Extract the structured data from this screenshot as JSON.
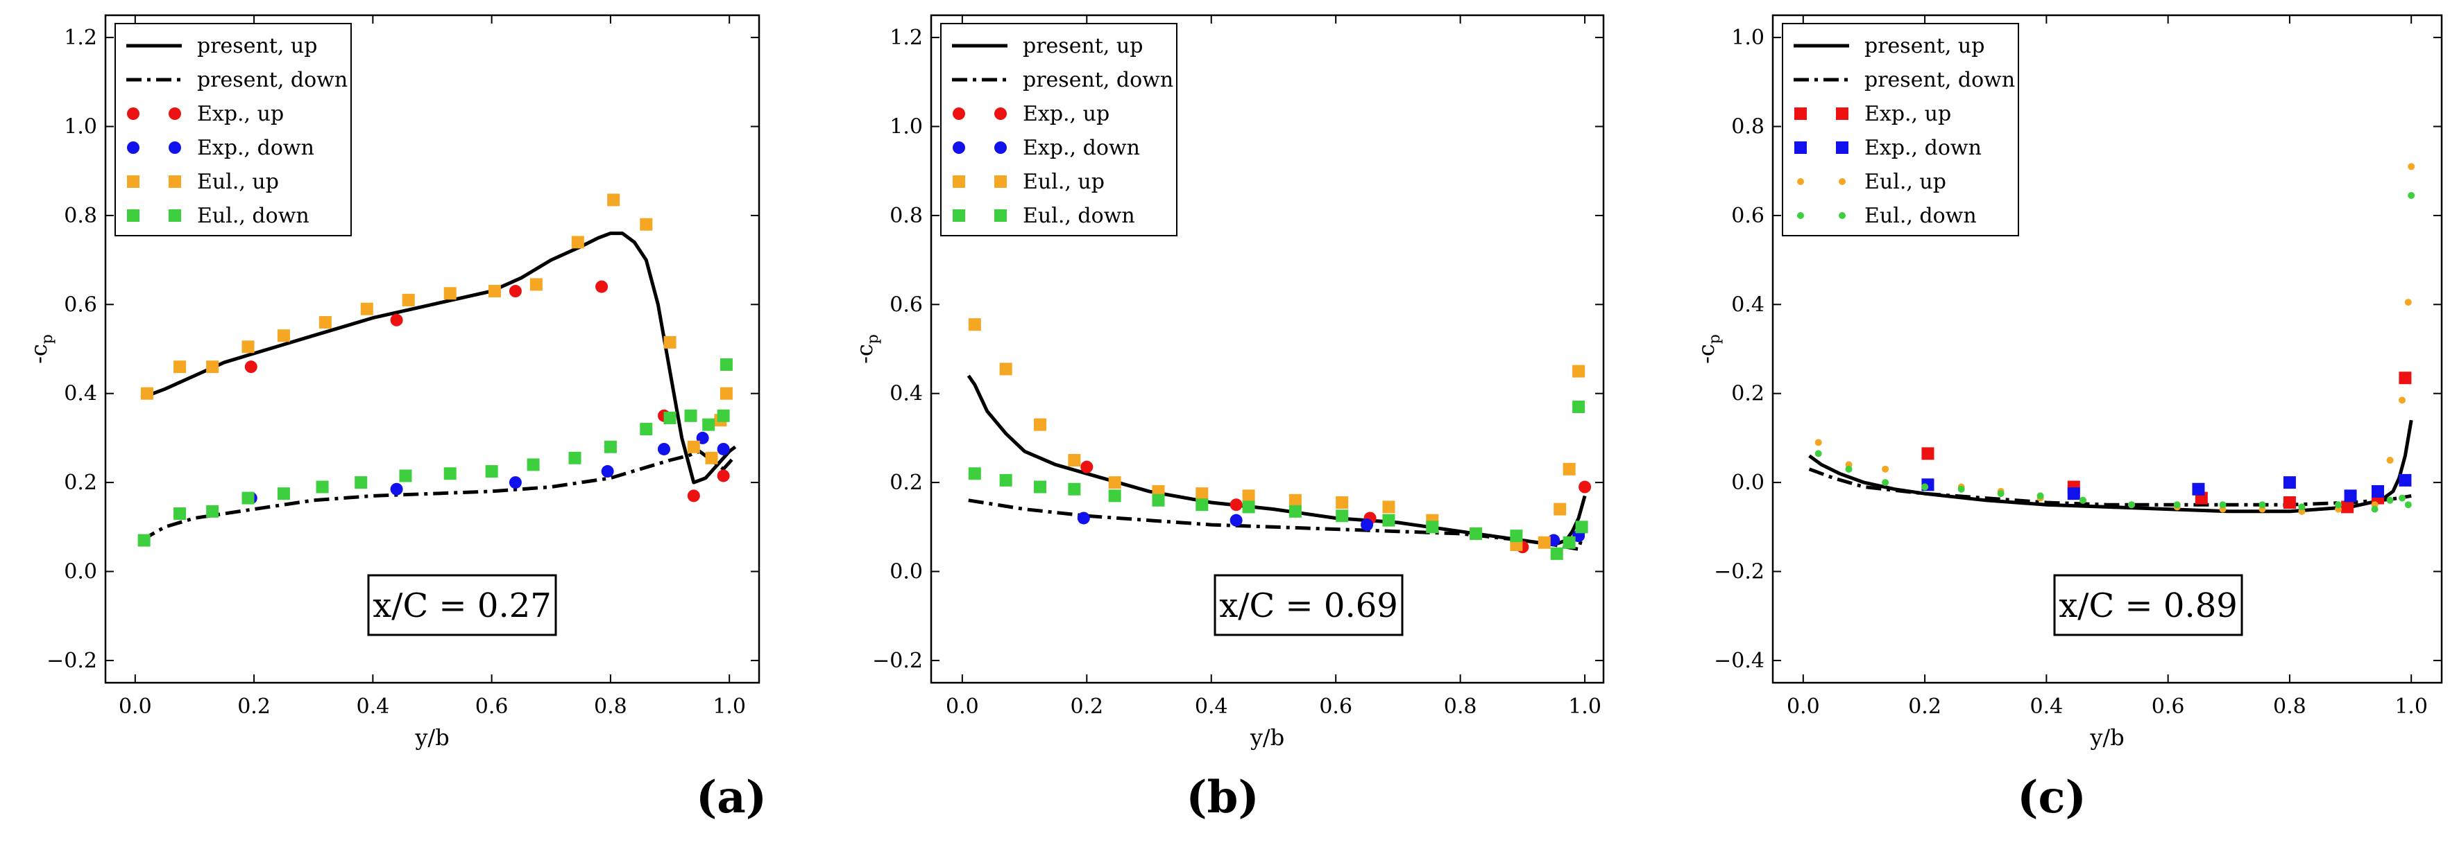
{
  "figure": {
    "panel_labels": [
      "(a)",
      "(b)",
      "(c)"
    ]
  },
  "colors": {
    "exp_up": "#ee1111",
    "exp_down": "#1111ee",
    "eul_up": "#f5a623",
    "eul_down": "#3ecf3e",
    "present": "#000000"
  },
  "chart_data": [
    {
      "type": "line",
      "panel": "(a)",
      "annotation": "x/C = 0.27",
      "xlabel": "y/b",
      "ylabel": "-c_p",
      "xlim": [
        -0.05,
        1.05
      ],
      "ylim": [
        -0.25,
        1.25
      ],
      "xticks": [
        0.0,
        0.2,
        0.4,
        0.6,
        0.8,
        1.0
      ],
      "xtick_labels": [
        "0.0",
        "0.2",
        "0.4",
        "0.6",
        "0.8",
        "1.0"
      ],
      "yticks": [
        -0.2,
        0.0,
        0.2,
        0.4,
        0.6,
        0.8,
        1.0,
        1.2
      ],
      "ytick_labels": [
        "−0.2",
        "0.0",
        "0.2",
        "0.4",
        "0.6",
        "0.8",
        "1.0",
        "1.2"
      ],
      "legend": [
        {
          "label": "present, up",
          "kind": "solid"
        },
        {
          "label": "present, down",
          "kind": "dashdot"
        },
        {
          "label": "Exp., up",
          "kind": "circle",
          "color": "#ee1111"
        },
        {
          "label": "Exp., down",
          "kind": "circle",
          "color": "#1111ee"
        },
        {
          "label": "Eul., up",
          "kind": "square",
          "color": "#f5a623"
        },
        {
          "label": "Eul., down",
          "kind": "square",
          "color": "#3ecf3e"
        }
      ],
      "lines": [
        {
          "name": "present, up",
          "style": "solid",
          "x": [
            0.01,
            0.05,
            0.1,
            0.15,
            0.2,
            0.3,
            0.4,
            0.5,
            0.6,
            0.65,
            0.7,
            0.75,
            0.78,
            0.8,
            0.82,
            0.84,
            0.86,
            0.88,
            0.9,
            0.92,
            0.94,
            0.96,
            0.98,
            1.0,
            1.01
          ],
          "y": [
            0.39,
            0.41,
            0.44,
            0.47,
            0.49,
            0.53,
            0.57,
            0.6,
            0.63,
            0.66,
            0.7,
            0.73,
            0.75,
            0.76,
            0.76,
            0.74,
            0.7,
            0.6,
            0.45,
            0.3,
            0.2,
            0.21,
            0.24,
            0.27,
            0.28
          ]
        },
        {
          "name": "present, down",
          "style": "dashdot",
          "x": [
            0.01,
            0.05,
            0.1,
            0.2,
            0.3,
            0.4,
            0.5,
            0.6,
            0.7,
            0.8,
            0.85,
            0.9,
            0.93,
            0.95,
            0.97,
            0.99,
            1.01
          ],
          "y": [
            0.07,
            0.1,
            0.12,
            0.14,
            0.16,
            0.17,
            0.175,
            0.18,
            0.19,
            0.21,
            0.23,
            0.25,
            0.26,
            0.27,
            0.25,
            0.23,
            0.26
          ]
        }
      ],
      "scatter": [
        {
          "name": "Exp., up",
          "marker": "circle",
          "color": "#ee1111",
          "x": [
            0.195,
            0.44,
            0.64,
            0.785,
            0.89,
            0.94,
            0.99
          ],
          "y": [
            0.46,
            0.565,
            0.63,
            0.64,
            0.35,
            0.17,
            0.215
          ]
        },
        {
          "name": "Exp., down",
          "marker": "circle",
          "color": "#1111ee",
          "x": [
            0.195,
            0.44,
            0.64,
            0.795,
            0.89,
            0.955,
            0.99
          ],
          "y": [
            0.165,
            0.185,
            0.2,
            0.225,
            0.275,
            0.3,
            0.275
          ]
        },
        {
          "name": "Eul., up",
          "marker": "square",
          "color": "#f5a623",
          "x": [
            0.02,
            0.075,
            0.13,
            0.19,
            0.25,
            0.32,
            0.39,
            0.46,
            0.53,
            0.605,
            0.675,
            0.745,
            0.805,
            0.86,
            0.9,
            0.94,
            0.97,
            0.985,
            0.995
          ],
          "y": [
            0.4,
            0.46,
            0.46,
            0.505,
            0.53,
            0.56,
            0.59,
            0.61,
            0.625,
            0.63,
            0.645,
            0.74,
            0.835,
            0.78,
            0.515,
            0.28,
            0.255,
            0.34,
            0.4
          ]
        },
        {
          "name": "Eul., down",
          "marker": "square",
          "color": "#3ecf3e",
          "x": [
            0.015,
            0.075,
            0.13,
            0.19,
            0.25,
            0.315,
            0.38,
            0.455,
            0.53,
            0.6,
            0.67,
            0.74,
            0.8,
            0.86,
            0.9,
            0.935,
            0.965,
            0.99,
            0.995
          ],
          "y": [
            0.07,
            0.13,
            0.135,
            0.165,
            0.175,
            0.19,
            0.2,
            0.215,
            0.22,
            0.225,
            0.24,
            0.255,
            0.28,
            0.32,
            0.345,
            0.35,
            0.33,
            0.35,
            0.465
          ]
        }
      ]
    },
    {
      "type": "line",
      "panel": "(b)",
      "annotation": "x/C = 0.69",
      "xlabel": "y/b",
      "ylabel": "-c_p",
      "xlim": [
        -0.05,
        1.03
      ],
      "ylim": [
        -0.25,
        1.25
      ],
      "xticks": [
        0.0,
        0.2,
        0.4,
        0.6,
        0.8,
        1.0
      ],
      "xtick_labels": [
        "0.0",
        "0.2",
        "0.4",
        "0.6",
        "0.8",
        "1.0"
      ],
      "yticks": [
        -0.2,
        0.0,
        0.2,
        0.4,
        0.6,
        0.8,
        1.0,
        1.2
      ],
      "ytick_labels": [
        "−0.2",
        "0.0",
        "0.2",
        "0.4",
        "0.6",
        "0.8",
        "1.0",
        "1.2"
      ],
      "legend": [
        {
          "label": "present, up",
          "kind": "solid"
        },
        {
          "label": "present, down",
          "kind": "dashdot"
        },
        {
          "label": "Exp., up",
          "kind": "circle",
          "color": "#ee1111"
        },
        {
          "label": "Exp., down",
          "kind": "circle",
          "color": "#1111ee"
        },
        {
          "label": "Eul., up",
          "kind": "square",
          "color": "#f5a623"
        },
        {
          "label": "Eul., down",
          "kind": "square",
          "color": "#3ecf3e"
        }
      ],
      "lines": [
        {
          "name": "present, up",
          "style": "solid",
          "x": [
            0.01,
            0.02,
            0.04,
            0.07,
            0.1,
            0.15,
            0.2,
            0.3,
            0.4,
            0.5,
            0.6,
            0.7,
            0.8,
            0.9,
            0.95,
            0.97,
            0.98,
            0.99,
            1.0
          ],
          "y": [
            0.44,
            0.42,
            0.36,
            0.31,
            0.27,
            0.24,
            0.22,
            0.18,
            0.155,
            0.14,
            0.12,
            0.11,
            0.09,
            0.07,
            0.06,
            0.07,
            0.09,
            0.12,
            0.17
          ]
        },
        {
          "name": "present, down",
          "style": "dashdot",
          "x": [
            0.01,
            0.1,
            0.2,
            0.3,
            0.4,
            0.5,
            0.6,
            0.7,
            0.8,
            0.9,
            0.95,
            0.99,
            1.0
          ],
          "y": [
            0.16,
            0.14,
            0.125,
            0.115,
            0.105,
            0.1,
            0.095,
            0.09,
            0.085,
            0.07,
            0.06,
            0.05,
            0.1
          ]
        }
      ],
      "scatter": [
        {
          "name": "Exp., up",
          "marker": "circle",
          "color": "#ee1111",
          "x": [
            0.2,
            0.44,
            0.655,
            0.9,
            1.0
          ],
          "y": [
            0.235,
            0.15,
            0.12,
            0.055,
            0.19
          ]
        },
        {
          "name": "Exp., down",
          "marker": "circle",
          "color": "#1111ee",
          "x": [
            0.195,
            0.44,
            0.65,
            0.95,
            0.99
          ],
          "y": [
            0.12,
            0.115,
            0.105,
            0.07,
            0.08
          ]
        },
        {
          "name": "Eul., up",
          "marker": "square",
          "color": "#f5a623",
          "x": [
            0.02,
            0.07,
            0.125,
            0.18,
            0.245,
            0.315,
            0.385,
            0.46,
            0.535,
            0.61,
            0.685,
            0.755,
            0.825,
            0.89,
            0.935,
            0.96,
            0.975,
            0.99
          ],
          "y": [
            0.555,
            0.455,
            0.33,
            0.25,
            0.2,
            0.18,
            0.175,
            0.17,
            0.16,
            0.155,
            0.145,
            0.115,
            0.085,
            0.06,
            0.065,
            0.14,
            0.23,
            0.45
          ]
        },
        {
          "name": "Eul., down",
          "marker": "square",
          "color": "#3ecf3e",
          "x": [
            0.02,
            0.07,
            0.125,
            0.18,
            0.245,
            0.315,
            0.385,
            0.46,
            0.535,
            0.61,
            0.685,
            0.755,
            0.825,
            0.89,
            0.955,
            0.975,
            0.99,
            0.995
          ],
          "y": [
            0.22,
            0.205,
            0.19,
            0.185,
            0.17,
            0.16,
            0.15,
            0.145,
            0.135,
            0.125,
            0.115,
            0.1,
            0.085,
            0.08,
            0.04,
            0.065,
            0.37,
            0.1
          ]
        }
      ]
    },
    {
      "type": "line",
      "panel": "(c)",
      "annotation": "x/C = 0.89",
      "xlabel": "y/b",
      "ylabel": "-c_p",
      "xlim": [
        -0.05,
        1.05
      ],
      "ylim": [
        -0.45,
        1.05
      ],
      "xticks": [
        0.0,
        0.2,
        0.4,
        0.6,
        0.8,
        1.0
      ],
      "xtick_labels": [
        "0.0",
        "0.2",
        "0.4",
        "0.6",
        "0.8",
        "1.0"
      ],
      "yticks": [
        -0.4,
        -0.2,
        0.0,
        0.2,
        0.4,
        0.6,
        0.8,
        1.0
      ],
      "ytick_labels": [
        "−0.4",
        "−0.2",
        "0.0",
        "0.2",
        "0.4",
        "0.6",
        "0.8",
        "1.0"
      ],
      "legend": [
        {
          "label": "present, up",
          "kind": "solid"
        },
        {
          "label": "present, down",
          "kind": "dashdot"
        },
        {
          "label": "Exp., up",
          "kind": "square",
          "color": "#ee1111"
        },
        {
          "label": "Exp., down",
          "kind": "square",
          "color": "#1111ee"
        },
        {
          "label": "Eul., up",
          "kind": "dot",
          "color": "#f5a623"
        },
        {
          "label": "Eul., down",
          "kind": "dot",
          "color": "#3ecf3e"
        }
      ],
      "lines": [
        {
          "name": "present, up",
          "style": "solid",
          "x": [
            0.01,
            0.03,
            0.06,
            0.1,
            0.15,
            0.2,
            0.3,
            0.4,
            0.5,
            0.6,
            0.7,
            0.8,
            0.9,
            0.95,
            0.97,
            0.98,
            0.99,
            1.0
          ],
          "y": [
            0.06,
            0.04,
            0.02,
            0.0,
            -0.015,
            -0.025,
            -0.04,
            -0.05,
            -0.055,
            -0.06,
            -0.065,
            -0.065,
            -0.055,
            -0.04,
            -0.02,
            0.01,
            0.06,
            0.14
          ]
        },
        {
          "name": "present, down",
          "style": "dashdot",
          "x": [
            0.01,
            0.05,
            0.1,
            0.2,
            0.3,
            0.4,
            0.5,
            0.6,
            0.7,
            0.8,
            0.9,
            0.95,
            0.98,
            1.0
          ],
          "y": [
            0.03,
            0.01,
            -0.01,
            -0.025,
            -0.035,
            -0.045,
            -0.05,
            -0.05,
            -0.05,
            -0.05,
            -0.045,
            -0.04,
            -0.035,
            -0.03
          ]
        }
      ],
      "scatter": [
        {
          "name": "Exp., up",
          "marker": "square",
          "color": "#ee1111",
          "x": [
            0.205,
            0.445,
            0.655,
            0.8,
            0.895,
            0.945,
            0.99
          ],
          "y": [
            0.065,
            -0.01,
            -0.035,
            -0.045,
            -0.055,
            -0.035,
            0.235
          ]
        },
        {
          "name": "Exp., down",
          "marker": "square",
          "color": "#1111ee",
          "x": [
            0.205,
            0.445,
            0.65,
            0.8,
            0.9,
            0.945,
            0.99
          ],
          "y": [
            -0.005,
            -0.025,
            -0.015,
            0.0,
            -0.03,
            -0.02,
            0.005
          ]
        },
        {
          "name": "Eul., up",
          "marker": "dot",
          "color": "#f5a623",
          "x": [
            0.025,
            0.075,
            0.135,
            0.2,
            0.26,
            0.325,
            0.39,
            0.46,
            0.54,
            0.615,
            0.69,
            0.755,
            0.82,
            0.88,
            0.94,
            0.965,
            0.985,
            0.995,
            1.0
          ],
          "y": [
            0.09,
            0.04,
            0.03,
            -0.01,
            -0.01,
            -0.02,
            -0.035,
            -0.04,
            -0.05,
            -0.055,
            -0.06,
            -0.06,
            -0.065,
            -0.06,
            -0.05,
            0.05,
            0.185,
            0.405,
            0.71
          ]
        },
        {
          "name": "Eul., down",
          "marker": "dot",
          "color": "#3ecf3e",
          "x": [
            0.025,
            0.075,
            0.135,
            0.2,
            0.26,
            0.325,
            0.39,
            0.46,
            0.54,
            0.615,
            0.69,
            0.755,
            0.82,
            0.88,
            0.94,
            0.965,
            0.985,
            0.995,
            1.0
          ],
          "y": [
            0.065,
            0.03,
            0.0,
            -0.01,
            -0.015,
            -0.025,
            -0.03,
            -0.04,
            -0.05,
            -0.05,
            -0.05,
            -0.05,
            -0.055,
            -0.05,
            -0.06,
            -0.04,
            -0.035,
            -0.05,
            0.645
          ]
        }
      ]
    }
  ]
}
